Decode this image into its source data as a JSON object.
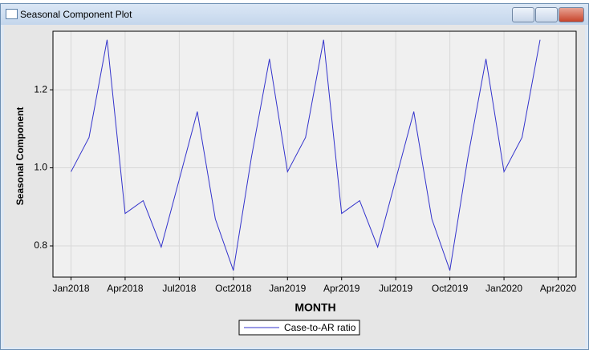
{
  "window": {
    "title": "Seasonal Component Plot"
  },
  "chart_data": {
    "type": "line",
    "xlabel": "MONTH",
    "ylabel": "Seasonal Component",
    "x": [
      "2018-01",
      "2018-02",
      "2018-03",
      "2018-04",
      "2018-05",
      "2018-06",
      "2018-07",
      "2018-08",
      "2018-09",
      "2018-10",
      "2018-11",
      "2018-12",
      "2019-01",
      "2019-02",
      "2019-03",
      "2019-04",
      "2019-05",
      "2019-06",
      "2019-07",
      "2019-08",
      "2019-09",
      "2019-10",
      "2019-11",
      "2019-12",
      "2020-01",
      "2020-02",
      "2020-03"
    ],
    "series": [
      {
        "name": "Case-to-AR ratio",
        "color": "#3333cc",
        "values": [
          0.99,
          1.078,
          1.328,
          0.883,
          0.916,
          0.797,
          0.97,
          1.144,
          0.869,
          0.737,
          1.027,
          1.279,
          0.99,
          1.078,
          1.328,
          0.883,
          0.916,
          0.797,
          0.97,
          1.144,
          0.869,
          0.737,
          1.027,
          1.279,
          0.99,
          1.078,
          1.328
        ]
      }
    ],
    "xlim": [
      "2017-12",
      "2020-05"
    ],
    "xticks": [
      {
        "value": "2018-01",
        "label": "Jan2018"
      },
      {
        "value": "2018-04",
        "label": "Apr2018"
      },
      {
        "value": "2018-07",
        "label": "Jul2018"
      },
      {
        "value": "2018-10",
        "label": "Oct2018"
      },
      {
        "value": "2019-01",
        "label": "Jan2019"
      },
      {
        "value": "2019-04",
        "label": "Apr2019"
      },
      {
        "value": "2019-07",
        "label": "Jul2019"
      },
      {
        "value": "2019-10",
        "label": "Oct2019"
      },
      {
        "value": "2020-01",
        "label": "Jan2020"
      },
      {
        "value": "2020-04",
        "label": "Apr2020"
      }
    ],
    "ylim": [
      0.72,
      1.35
    ],
    "yticks": [
      0.8,
      {
        "value": 1,
        "label": "1.0"
      },
      1.2
    ],
    "grid": true,
    "legend": "bottom"
  }
}
